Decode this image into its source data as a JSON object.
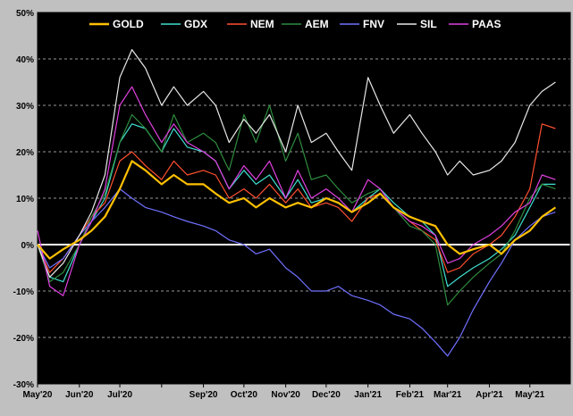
{
  "chart_data": {
    "type": "line",
    "title": "",
    "xlabel": "",
    "ylabel": "",
    "ylim": [
      -30,
      50
    ],
    "yticks": [
      -30,
      -20,
      -10,
      0,
      10,
      20,
      30,
      40,
      50
    ],
    "ytick_labels": [
      "-30%",
      "-20%",
      "-10%",
      "0%",
      "10%",
      "20%",
      "30%",
      "40%",
      "50%"
    ],
    "x_range": [
      "2020-05-01",
      "2021-05-31"
    ],
    "xticks": [
      "2020-05-01",
      "2020-06-01",
      "2020-07-01",
      "2020-08-01",
      "2020-09-01",
      "2020-10-01",
      "2020-11-01",
      "2020-12-01",
      "2021-01-01",
      "2021-02-01",
      "2021-03-01",
      "2021-04-01",
      "2021-05-01"
    ],
    "xtick_labels": [
      "May'20",
      "Jun'20",
      "Jul'20",
      "Sep'20",
      "Oct'20",
      "Nov'20",
      "Dec'20",
      "Jan'21",
      "Feb'21",
      "Mar'21",
      "Apr'21",
      "May'21"
    ],
    "xtick_label_dates": [
      "2020-05-01",
      "2020-06-01",
      "2020-07-01",
      "2020-09-01",
      "2020-10-01",
      "2020-11-01",
      "2020-12-01",
      "2021-01-01",
      "2021-02-01",
      "2021-03-01",
      "2021-04-01",
      "2021-05-01"
    ],
    "grid": true,
    "legend_position": "top",
    "background": "#000000",
    "zero_line_color": "#ffffff",
    "grid_color": "#ffffff",
    "series": [
      {
        "name": "GOLD",
        "color": "#ffc000",
        "width": 2.2,
        "dates": [
          "2020-05-01",
          "2020-05-10",
          "2020-05-20",
          "2020-06-01",
          "2020-06-10",
          "2020-06-20",
          "2020-07-01",
          "2020-07-10",
          "2020-07-20",
          "2020-08-01",
          "2020-08-10",
          "2020-08-20",
          "2020-09-01",
          "2020-09-10",
          "2020-09-20",
          "2020-10-01",
          "2020-10-10",
          "2020-10-20",
          "2020-11-01",
          "2020-11-10",
          "2020-11-20",
          "2020-12-01",
          "2020-12-10",
          "2020-12-20",
          "2021-01-01",
          "2021-01-10",
          "2021-01-20",
          "2021-02-01",
          "2021-02-10",
          "2021-02-20",
          "2021-03-01",
          "2021-03-10",
          "2021-03-20",
          "2021-04-01",
          "2021-04-10",
          "2021-04-20",
          "2021-05-01",
          "2021-05-10",
          "2021-05-20"
        ],
        "values": [
          0,
          -3,
          -1,
          1,
          3,
          6,
          12,
          18,
          16,
          13,
          15,
          13,
          13,
          11,
          9,
          10,
          8,
          10,
          8,
          9,
          8,
          10,
          9,
          7,
          9,
          11,
          8,
          6,
          5,
          4,
          0,
          -2,
          -1,
          0,
          -2,
          1,
          3,
          6,
          8
        ]
      },
      {
        "name": "GDX",
        "color": "#40e0d0",
        "width": 1.2,
        "dates": [
          "2020-05-01",
          "2020-05-10",
          "2020-05-20",
          "2020-06-01",
          "2020-06-10",
          "2020-06-20",
          "2020-07-01",
          "2020-07-10",
          "2020-07-20",
          "2020-08-01",
          "2020-08-10",
          "2020-08-20",
          "2020-09-01",
          "2020-09-10",
          "2020-09-20",
          "2020-10-01",
          "2020-10-10",
          "2020-10-20",
          "2020-11-01",
          "2020-11-10",
          "2020-11-20",
          "2020-12-01",
          "2020-12-10",
          "2020-12-20",
          "2021-01-01",
          "2021-01-10",
          "2021-01-20",
          "2021-02-01",
          "2021-02-10",
          "2021-02-20",
          "2021-03-01",
          "2021-03-10",
          "2021-03-20",
          "2021-04-01",
          "2021-04-10",
          "2021-04-20",
          "2021-05-01",
          "2021-05-10",
          "2021-05-20"
        ],
        "values": [
          0,
          -7,
          -8,
          0,
          5,
          10,
          22,
          26,
          25,
          20,
          25,
          21,
          20,
          18,
          12,
          16,
          13,
          15,
          10,
          14,
          9,
          10,
          9,
          7,
          10,
          12,
          9,
          6,
          5,
          2,
          -9,
          -7,
          -5,
          -3,
          -1,
          2,
          8,
          13,
          13
        ]
      },
      {
        "name": "NEM",
        "color": "#ff5030",
        "width": 1.2,
        "dates": [
          "2020-05-01",
          "2020-05-10",
          "2020-05-20",
          "2020-06-01",
          "2020-06-10",
          "2020-06-20",
          "2020-07-01",
          "2020-07-10",
          "2020-07-20",
          "2020-08-01",
          "2020-08-10",
          "2020-08-20",
          "2020-09-01",
          "2020-09-10",
          "2020-09-20",
          "2020-10-01",
          "2020-10-10",
          "2020-10-20",
          "2020-11-01",
          "2020-11-10",
          "2020-11-20",
          "2020-12-01",
          "2020-12-10",
          "2020-12-20",
          "2021-01-01",
          "2021-01-10",
          "2021-01-20",
          "2021-02-01",
          "2021-02-10",
          "2021-02-20",
          "2021-03-01",
          "2021-03-10",
          "2021-03-20",
          "2021-04-01",
          "2021-04-10",
          "2021-04-20",
          "2021-05-01",
          "2021-05-10",
          "2021-05-20"
        ],
        "values": [
          0,
          -6,
          -3,
          2,
          6,
          9,
          18,
          20,
          17,
          14,
          18,
          15,
          16,
          15,
          10,
          12,
          10,
          13,
          9,
          12,
          8,
          9,
          8,
          5,
          10,
          11,
          8,
          5,
          3,
          1,
          -6,
          -5,
          -2,
          0,
          2,
          6,
          12,
          26,
          25
        ]
      },
      {
        "name": "AEM",
        "color": "#2e8b3e",
        "width": 1.2,
        "dates": [
          "2020-05-01",
          "2020-05-10",
          "2020-05-20",
          "2020-06-01",
          "2020-06-10",
          "2020-06-20",
          "2020-07-01",
          "2020-07-10",
          "2020-07-20",
          "2020-08-01",
          "2020-08-10",
          "2020-08-20",
          "2020-09-01",
          "2020-09-10",
          "2020-09-20",
          "2020-10-01",
          "2020-10-10",
          "2020-10-20",
          "2020-11-01",
          "2020-11-10",
          "2020-11-20",
          "2020-12-01",
          "2020-12-10",
          "2020-12-20",
          "2021-01-01",
          "2021-01-10",
          "2021-01-20",
          "2021-02-01",
          "2021-02-10",
          "2021-02-20",
          "2021-03-01",
          "2021-03-10",
          "2021-03-20",
          "2021-04-01",
          "2021-04-10",
          "2021-04-20",
          "2021-05-01",
          "2021-05-10",
          "2021-05-20"
        ],
        "values": [
          0,
          -8,
          -6,
          0,
          6,
          11,
          22,
          28,
          25,
          20,
          28,
          22,
          24,
          22,
          16,
          28,
          22,
          30,
          18,
          24,
          14,
          15,
          12,
          9,
          11,
          12,
          8,
          4,
          3,
          0,
          -13,
          -10,
          -7,
          -4,
          -2,
          3,
          10,
          13,
          12
        ]
      },
      {
        "name": "FNV",
        "color": "#7070ff",
        "width": 1.2,
        "dates": [
          "2020-05-01",
          "2020-05-10",
          "2020-05-20",
          "2020-06-01",
          "2020-06-10",
          "2020-06-20",
          "2020-07-01",
          "2020-07-10",
          "2020-07-20",
          "2020-08-01",
          "2020-08-10",
          "2020-08-20",
          "2020-09-01",
          "2020-09-10",
          "2020-09-20",
          "2020-10-01",
          "2020-10-10",
          "2020-10-20",
          "2020-11-01",
          "2020-11-10",
          "2020-11-20",
          "2020-12-01",
          "2020-12-10",
          "2020-12-20",
          "2021-01-01",
          "2021-01-10",
          "2021-01-20",
          "2021-02-01",
          "2021-02-10",
          "2021-02-20",
          "2021-03-01",
          "2021-03-10",
          "2021-03-20",
          "2021-04-01",
          "2021-04-10",
          "2021-04-20",
          "2021-05-01",
          "2021-05-10",
          "2021-05-20"
        ],
        "values": [
          0,
          -5,
          -3,
          2,
          5,
          8,
          12,
          10,
          8,
          7,
          6,
          5,
          4,
          3,
          1,
          0,
          -2,
          -1,
          -5,
          -7,
          -10,
          -10,
          -9,
          -11,
          -12,
          -13,
          -15,
          -16,
          -18,
          -21,
          -24,
          -20,
          -14,
          -8,
          -4,
          1,
          4,
          6,
          7
        ]
      },
      {
        "name": "SIL",
        "color": "#e8e8e8",
        "width": 1.2,
        "dates": [
          "2020-05-01",
          "2020-05-10",
          "2020-05-20",
          "2020-06-01",
          "2020-06-10",
          "2020-06-20",
          "2020-07-01",
          "2020-07-10",
          "2020-07-20",
          "2020-08-01",
          "2020-08-10",
          "2020-08-20",
          "2020-09-01",
          "2020-09-10",
          "2020-09-20",
          "2020-10-01",
          "2020-10-10",
          "2020-10-20",
          "2020-11-01",
          "2020-11-10",
          "2020-11-20",
          "2020-12-01",
          "2020-12-10",
          "2020-12-20",
          "2021-01-01",
          "2021-01-10",
          "2021-01-20",
          "2021-02-01",
          "2021-02-10",
          "2021-02-20",
          "2021-03-01",
          "2021-03-10",
          "2021-03-20",
          "2021-04-01",
          "2021-04-10",
          "2021-04-20",
          "2021-05-01",
          "2021-05-10",
          "2021-05-20"
        ],
        "values": [
          0,
          -7,
          -4,
          2,
          7,
          15,
          36,
          42,
          38,
          30,
          34,
          30,
          33,
          30,
          22,
          27,
          24,
          28,
          20,
          30,
          22,
          24,
          20,
          16,
          36,
          30,
          24,
          28,
          24,
          20,
          15,
          18,
          15,
          16,
          18,
          22,
          30,
          33,
          35
        ]
      },
      {
        "name": "PAAS",
        "color": "#e040e0",
        "width": 1.2,
        "dates": [
          "2020-05-01",
          "2020-05-10",
          "2020-05-20",
          "2020-06-01",
          "2020-06-10",
          "2020-06-20",
          "2020-07-01",
          "2020-07-10",
          "2020-07-20",
          "2020-08-01",
          "2020-08-10",
          "2020-08-20",
          "2020-09-01",
          "2020-09-10",
          "2020-09-20",
          "2020-10-01",
          "2020-10-10",
          "2020-10-20",
          "2020-11-01",
          "2020-11-10",
          "2020-11-20",
          "2020-12-01",
          "2020-12-10",
          "2020-12-20",
          "2021-01-01",
          "2021-01-10",
          "2021-01-20",
          "2021-02-01",
          "2021-02-10",
          "2021-02-20",
          "2021-03-01",
          "2021-03-10",
          "2021-03-20",
          "2021-04-01",
          "2021-04-10",
          "2021-04-20",
          "2021-05-01",
          "2021-05-10",
          "2021-05-20"
        ],
        "values": [
          3,
          -9,
          -11,
          0,
          5,
          12,
          30,
          34,
          28,
          22,
          26,
          22,
          20,
          18,
          12,
          17,
          14,
          18,
          10,
          16,
          10,
          12,
          10,
          7,
          14,
          12,
          8,
          5,
          4,
          2,
          -4,
          -3,
          0,
          2,
          4,
          7,
          9,
          15,
          14
        ]
      }
    ]
  }
}
